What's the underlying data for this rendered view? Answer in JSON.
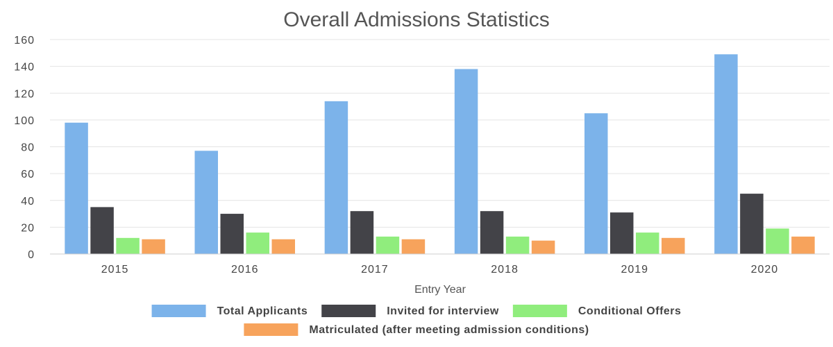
{
  "chart_data": {
    "type": "bar",
    "title": "Overall Admissions Statistics",
    "xlabel": "Entry Year",
    "ylabel": "",
    "ylim": [
      0,
      160
    ],
    "yticks": [
      0,
      20,
      40,
      60,
      80,
      100,
      120,
      140,
      160
    ],
    "grid": true,
    "legend_position": "bottom",
    "categories": [
      "2015",
      "2016",
      "2017",
      "2018",
      "2019",
      "2020"
    ],
    "series": [
      {
        "name": "Total Applicants",
        "color": "#7cb3ea",
        "values": [
          98,
          77,
          114,
          138,
          105,
          149
        ]
      },
      {
        "name": "Invited for interview",
        "color": "#434348",
        "values": [
          35,
          30,
          32,
          32,
          31,
          45
        ]
      },
      {
        "name": "Conditional Offers",
        "color": "#90ed7d",
        "values": [
          12,
          16,
          13,
          13,
          16,
          19
        ]
      },
      {
        "name": "Matriculated (after meeting admission conditions)",
        "color": "#f7a35c",
        "values": [
          11,
          11,
          11,
          10,
          12,
          13
        ]
      }
    ]
  }
}
